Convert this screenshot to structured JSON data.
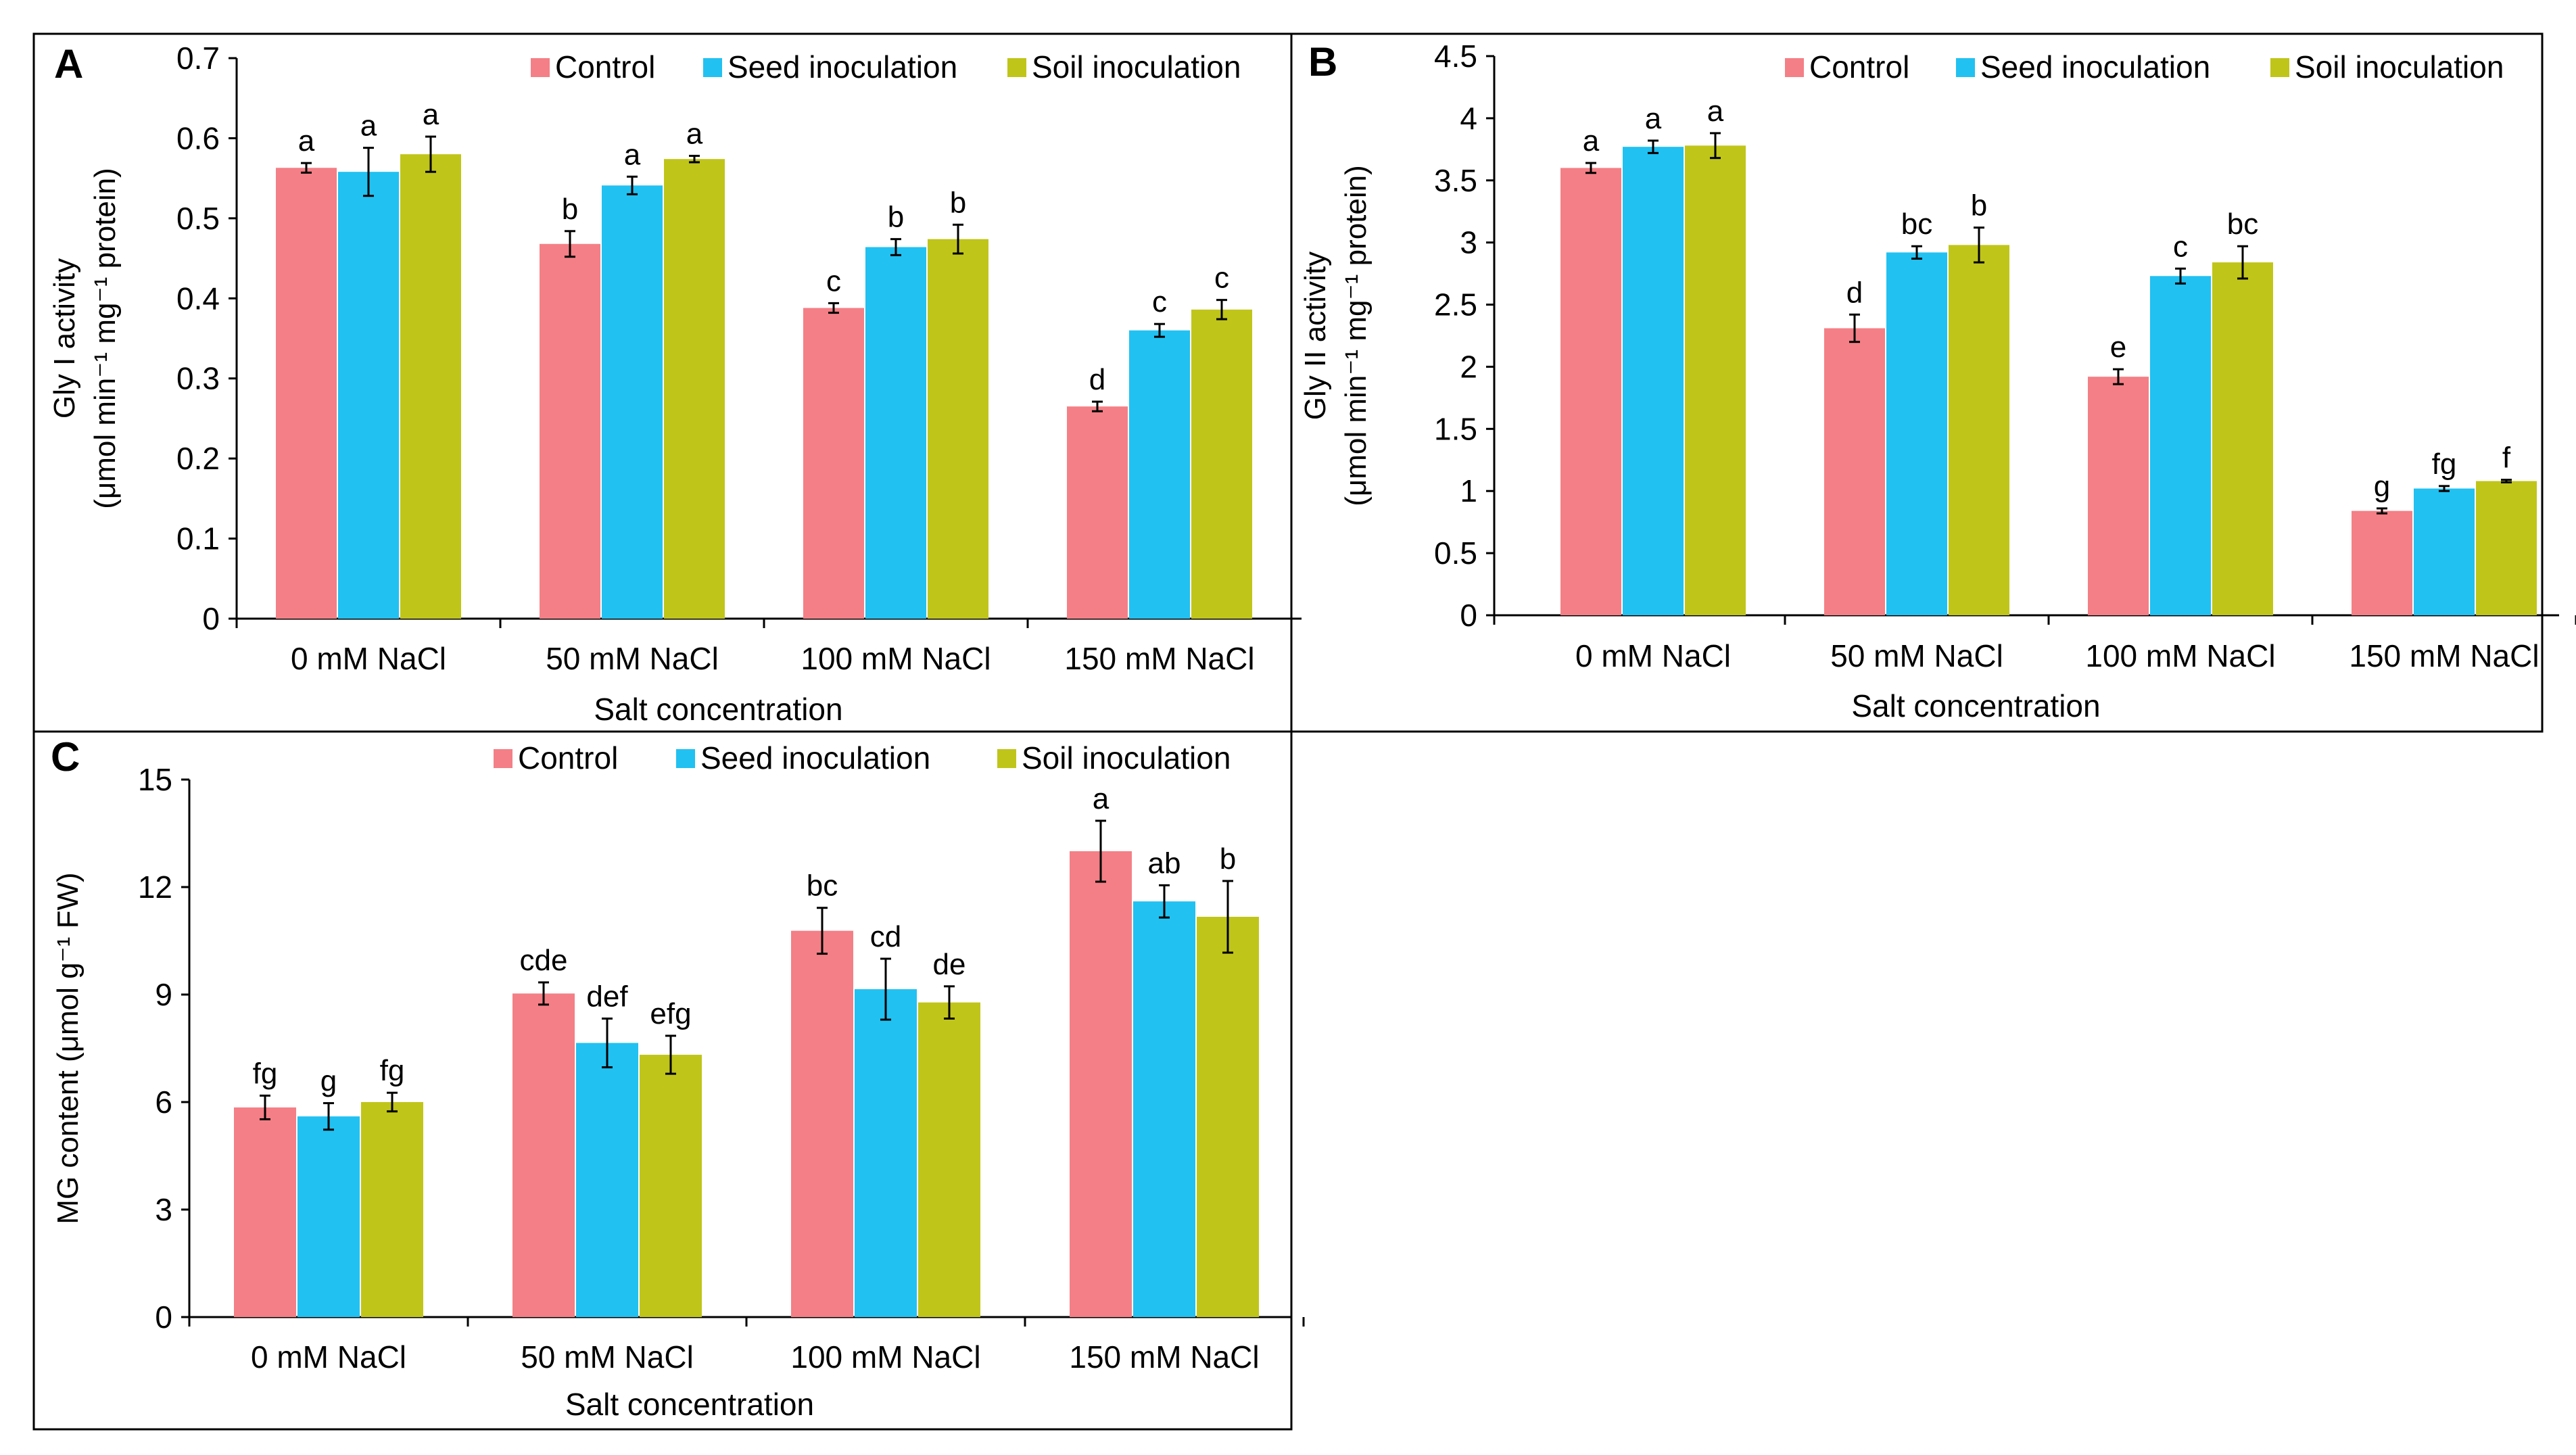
{
  "chart_data": [
    {
      "type": "bar",
      "panel_label": "A",
      "categories": [
        "0 mM NaCl",
        "50 mM NaCl",
        "100 mM NaCl",
        "150 mM NaCl"
      ],
      "series": [
        {
          "name": "Control",
          "color": "#f47f86",
          "values": [
            0.563,
            0.468,
            0.388,
            0.265
          ],
          "errors": [
            0.006,
            0.016,
            0.006,
            0.006
          ],
          "letters": [
            "a",
            "b",
            "c",
            "d"
          ]
        },
        {
          "name": "Seed inoculation",
          "color": "#21c1f1",
          "values": [
            0.558,
            0.541,
            0.464,
            0.36
          ],
          "errors": [
            0.03,
            0.011,
            0.01,
            0.008
          ],
          "letters": [
            "a",
            "a",
            "b",
            "c"
          ]
        },
        {
          "name": "Soil inoculation",
          "color": "#c0c519",
          "values": [
            0.58,
            0.574,
            0.474,
            0.386
          ],
          "errors": [
            0.022,
            0.004,
            0.018,
            0.012
          ],
          "letters": [
            "a",
            "a",
            "b",
            "c"
          ]
        }
      ],
      "xlabel": "Salt concentration",
      "ylabel_line1": "Gly I activity",
      "ylabel_line2": "(μmol min⁻¹ mg⁻¹ protein)",
      "ylim": [
        0,
        0.7
      ],
      "yticks": [
        0,
        0.1,
        0.2,
        0.3,
        0.4,
        0.5,
        0.6,
        0.7
      ],
      "ytick_labels": [
        "0",
        "0.1",
        "0.2",
        "0.3",
        "0.4",
        "0.5",
        "0.6",
        "0.7"
      ],
      "legend_position": "top-right",
      "grid": false
    },
    {
      "type": "bar",
      "panel_label": "B",
      "categories": [
        "0 mM NaCl",
        "50 mM NaCl",
        "100 mM NaCl",
        "150 mM NaCl"
      ],
      "series": [
        {
          "name": "Control",
          "color": "#f47f86",
          "values": [
            3.6,
            2.31,
            1.92,
            0.84
          ],
          "errors": [
            0.04,
            0.11,
            0.06,
            0.02
          ],
          "letters": [
            "a",
            "d",
            "e",
            "g"
          ]
        },
        {
          "name": "Seed inoculation",
          "color": "#21c1f1",
          "values": [
            3.77,
            2.92,
            2.73,
            1.02
          ],
          "errors": [
            0.05,
            0.05,
            0.06,
            0.02
          ],
          "letters": [
            "a",
            "bc",
            "c",
            "fg"
          ]
        },
        {
          "name": "Soil inoculation",
          "color": "#c0c519",
          "values": [
            3.78,
            2.98,
            2.84,
            1.08
          ],
          "errors": [
            0.1,
            0.14,
            0.13,
            0.01
          ],
          "letters": [
            "a",
            "b",
            "bc",
            "f"
          ]
        }
      ],
      "xlabel": "Salt concentration",
      "ylabel_line1": "Gly II activity",
      "ylabel_line2": "(μmol min⁻¹ mg⁻¹ protein)",
      "ylim": [
        0,
        4.5
      ],
      "yticks": [
        0,
        0.5,
        1,
        1.5,
        2,
        2.5,
        3,
        3.5,
        4,
        4.5
      ],
      "ytick_labels": [
        "0",
        "0.5",
        "1",
        "1.5",
        "2",
        "2.5",
        "3",
        "3.5",
        "4",
        "4.5"
      ],
      "legend_position": "top-right",
      "grid": false
    },
    {
      "type": "bar",
      "panel_label": "C",
      "categories": [
        "0 mM NaCl",
        "50 mM NaCl",
        "100 mM NaCl",
        "150 mM NaCl"
      ],
      "series": [
        {
          "name": "Control",
          "color": "#f47f86",
          "values": [
            5.85,
            9.03,
            10.78,
            13.0
          ],
          "errors": [
            0.33,
            0.31,
            0.64,
            0.85
          ],
          "letters": [
            "fg",
            "cde",
            "bc",
            "a"
          ]
        },
        {
          "name": "Seed inoculation",
          "color": "#21c1f1",
          "values": [
            5.6,
            7.65,
            9.15,
            11.6
          ],
          "errors": [
            0.37,
            0.68,
            0.85,
            0.45
          ],
          "letters": [
            "g",
            "def",
            "cd",
            "ab"
          ]
        },
        {
          "name": "Soil inoculation",
          "color": "#c0c519",
          "values": [
            6.0,
            7.32,
            8.78,
            11.17
          ],
          "errors": [
            0.26,
            0.53,
            0.45,
            1.0
          ],
          "letters": [
            "fg",
            "efg",
            "de",
            "b"
          ]
        }
      ],
      "xlabel": "Salt concentration",
      "ylabel_line1": "MG content (μmol g⁻¹ FW)",
      "ylabel_line2": "",
      "ylim": [
        0,
        15
      ],
      "yticks": [
        0,
        3,
        6,
        9,
        12,
        15
      ],
      "ytick_labels": [
        "0",
        "3",
        "6",
        "9",
        "12",
        "15"
      ],
      "legend_position": "top-right",
      "grid": false
    }
  ]
}
